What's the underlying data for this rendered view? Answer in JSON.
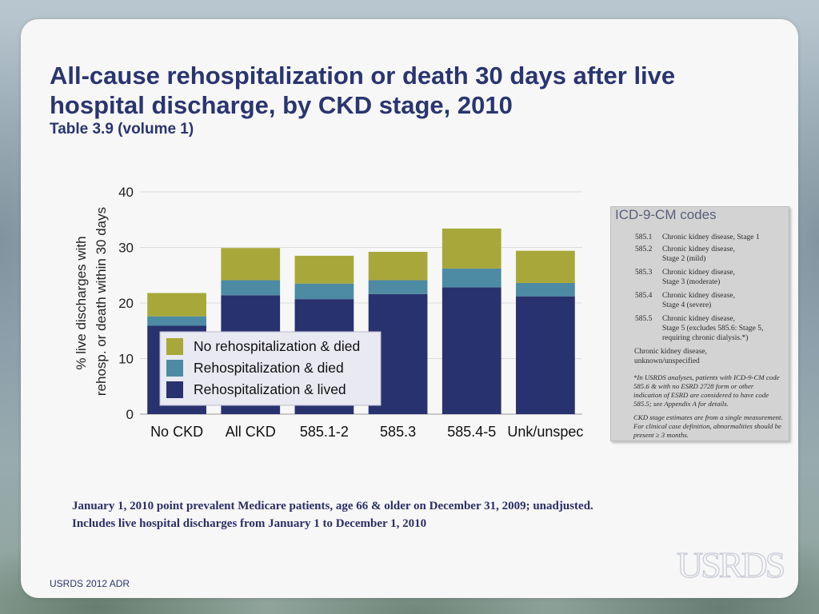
{
  "title": "All-cause rehospitalization or death 30 days after live hospital discharge, by CKD stage, 2010",
  "subtitle": "Table 3.9 (volume 1)",
  "chart_data": {
    "type": "bar",
    "stacked": true,
    "categories": [
      "No CKD",
      "All CKD",
      "585.1-2",
      "585.3",
      "585.4-5",
      "Unk/unspec"
    ],
    "series": [
      {
        "name": "Rehospitalization & lived",
        "color": "#28326e",
        "values": [
          15.9,
          21.4,
          20.7,
          21.6,
          22.8,
          21.2
        ]
      },
      {
        "name": "Rehospitalization & died",
        "color": "#4d8aa3",
        "values": [
          1.7,
          2.7,
          2.8,
          2.5,
          3.4,
          2.4
        ]
      },
      {
        "name": "No rehospitalization & died",
        "color": "#a8a83a",
        "values": [
          4.2,
          5.8,
          5.0,
          5.1,
          7.2,
          5.8
        ]
      }
    ],
    "ylabel_line1": "% live discharges with",
    "ylabel_line2": "rehosp. or death within 30 days",
    "ylim": [
      0,
      40
    ],
    "yticks": [
      0,
      10,
      20,
      30,
      40
    ],
    "grid": true,
    "legend": [
      "No rehospitalization & died",
      "Rehospitalization & died",
      "Rehospitalization & lived"
    ],
    "legend_placement": "bottom-left inside plot"
  },
  "sidebar": {
    "title": "ICD-9-CM codes",
    "rows": [
      {
        "code": "585.1",
        "desc": "Chronic kidney disease, Stage 1"
      },
      {
        "code": "585.2",
        "desc": "Chronic kidney disease,\nStage 2 (mild)"
      },
      {
        "code": "585.3",
        "desc": "Chronic kidney disease,\nStage 3 (moderate)"
      },
      {
        "code": "585.4",
        "desc": "Chronic kidney disease,\nStage 4 (severe)"
      },
      {
        "code": "585.5",
        "desc": "Chronic kidney disease,\nStage 5 (excludes 585.6: Stage 5,\nrequiring chronic dialysis.*)"
      }
    ],
    "unknown": "Chronic kidney disease,\nunknown/unspecified",
    "note1": "*In USRDS analyses, patients with ICD-9-CM code 585.6 & with no ESRD 2728 form or other indication of ESRD are considered to have code 585.5; see Appendix A for details.",
    "note2": "CKD stage estimates are from a single measurement. For clinical case definition, abnormalities should be present ≥ 3 months."
  },
  "footnote": "January 1, 2010 point prevalent Medicare patients, age 66 & older on December 31, 2009; unadjusted. Includes live hospital discharges from January 1 to December 1, 2010",
  "footer": "USRDS 2012 ADR",
  "logo_text": "USRDS"
}
